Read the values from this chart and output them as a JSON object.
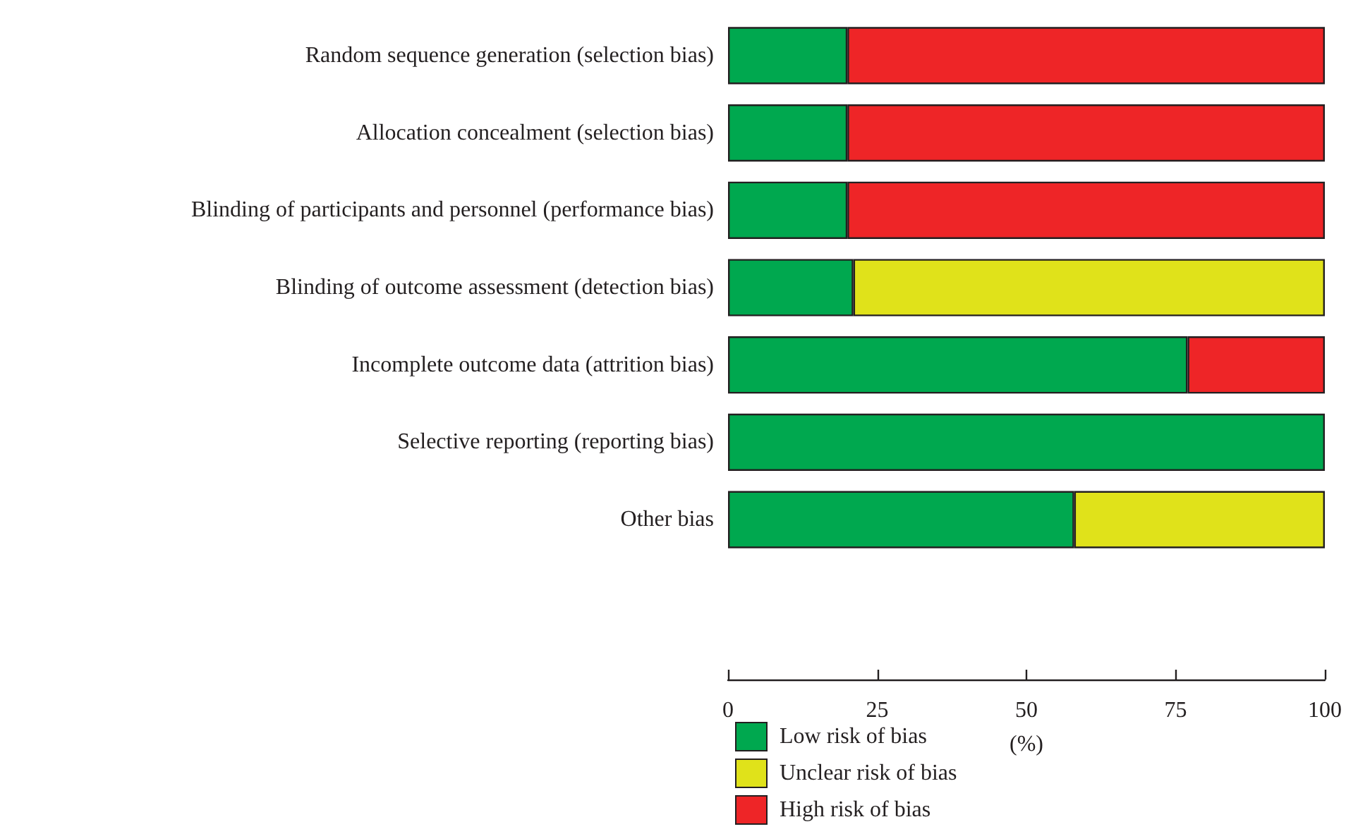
{
  "chart_data": {
    "type": "bar",
    "orientation": "horizontal",
    "stacked": true,
    "xlabel": "(%)",
    "categories": [
      "Random sequence generation (selection bias)",
      "Allocation concealment (selection bias)",
      "Blinding of participants and personnel (performance bias)",
      "Blinding of outcome assessment (detection bias)",
      "Incomplete outcome data (attrition bias)",
      "Selective reporting (reporting bias)",
      "Other bias"
    ],
    "series": [
      {
        "name": "Low risk of bias",
        "color": "#00a84f",
        "values": [
          20,
          20,
          20,
          21,
          77,
          100,
          58
        ]
      },
      {
        "name": "Unclear risk of bias",
        "color": "#e0e21a",
        "values": [
          0,
          0,
          0,
          79,
          0,
          0,
          42
        ]
      },
      {
        "name": "High risk of bias",
        "color": "#ee2527",
        "values": [
          80,
          80,
          80,
          0,
          23,
          0,
          0
        ]
      }
    ],
    "xlim": [
      0,
      100
    ],
    "xticks": [
      0,
      25,
      50,
      75,
      100
    ],
    "grid": false,
    "legend": "bottom"
  }
}
